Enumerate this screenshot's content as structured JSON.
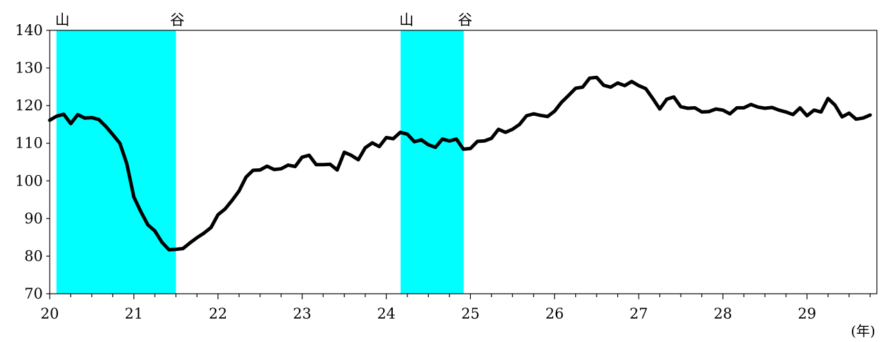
{
  "chart_data": {
    "type": "line",
    "title": "",
    "xlabel": "",
    "ylabel": "",
    "x_unit_label": "(年)",
    "xlim": [
      20,
      29.83
    ],
    "ylim": [
      70,
      140
    ],
    "yticks": [
      70,
      80,
      90,
      100,
      110,
      120,
      130,
      140
    ],
    "xticks": [
      20,
      21,
      22,
      23,
      24,
      25,
      26,
      27,
      28,
      29
    ],
    "grid": false,
    "legend": "none",
    "colors": {
      "line": "#000000",
      "shading": "#00ffff"
    },
    "shaded_periods": [
      {
        "start": 20.08,
        "end": 21.5,
        "start_label": "山",
        "end_label": "谷"
      },
      {
        "start": 24.17,
        "end": 24.92,
        "start_label": "山",
        "end_label": "谷"
      }
    ],
    "series": [
      {
        "values": [
          116.1,
          117.2,
          117.7,
          115.2,
          117.6,
          116.7,
          116.8,
          116.3,
          114.5,
          112.3,
          110.0,
          104.5,
          95.7,
          91.8,
          88.3,
          86.7,
          83.7,
          81.7,
          81.8,
          82.0,
          83.5,
          84.9,
          86.1,
          87.6,
          91.0,
          92.5,
          94.8,
          97.3,
          101.0,
          102.8,
          102.9,
          103.9,
          103.0,
          103.2,
          104.2,
          103.8,
          106.3,
          106.8,
          104.3,
          104.3,
          104.4,
          102.9,
          107.6,
          106.8,
          105.6,
          108.8,
          110.1,
          109.1,
          111.5,
          111.2,
          112.9,
          112.4,
          110.4,
          110.9,
          109.6,
          108.9,
          111.1,
          110.6,
          111.1,
          108.4,
          108.6,
          110.5,
          110.6,
          111.3,
          113.7,
          112.9,
          113.7,
          115.0,
          117.3,
          117.8,
          117.4,
          117.1,
          118.5,
          120.9,
          122.7,
          124.6,
          124.9,
          127.3,
          127.5,
          125.4,
          124.9,
          126.0,
          125.3,
          126.4,
          125.3,
          124.5,
          121.9,
          119.1,
          121.7,
          122.3,
          119.7,
          119.3,
          119.4,
          118.3,
          118.4,
          119.1,
          118.8,
          117.8,
          119.4,
          119.4,
          120.3,
          119.6,
          119.3,
          119.5,
          118.8,
          118.3,
          117.6,
          119.4,
          117.3,
          118.8,
          118.3,
          121.9,
          120.1,
          117.0,
          118.0,
          116.4,
          116.7,
          117.5
        ]
      }
    ]
  }
}
